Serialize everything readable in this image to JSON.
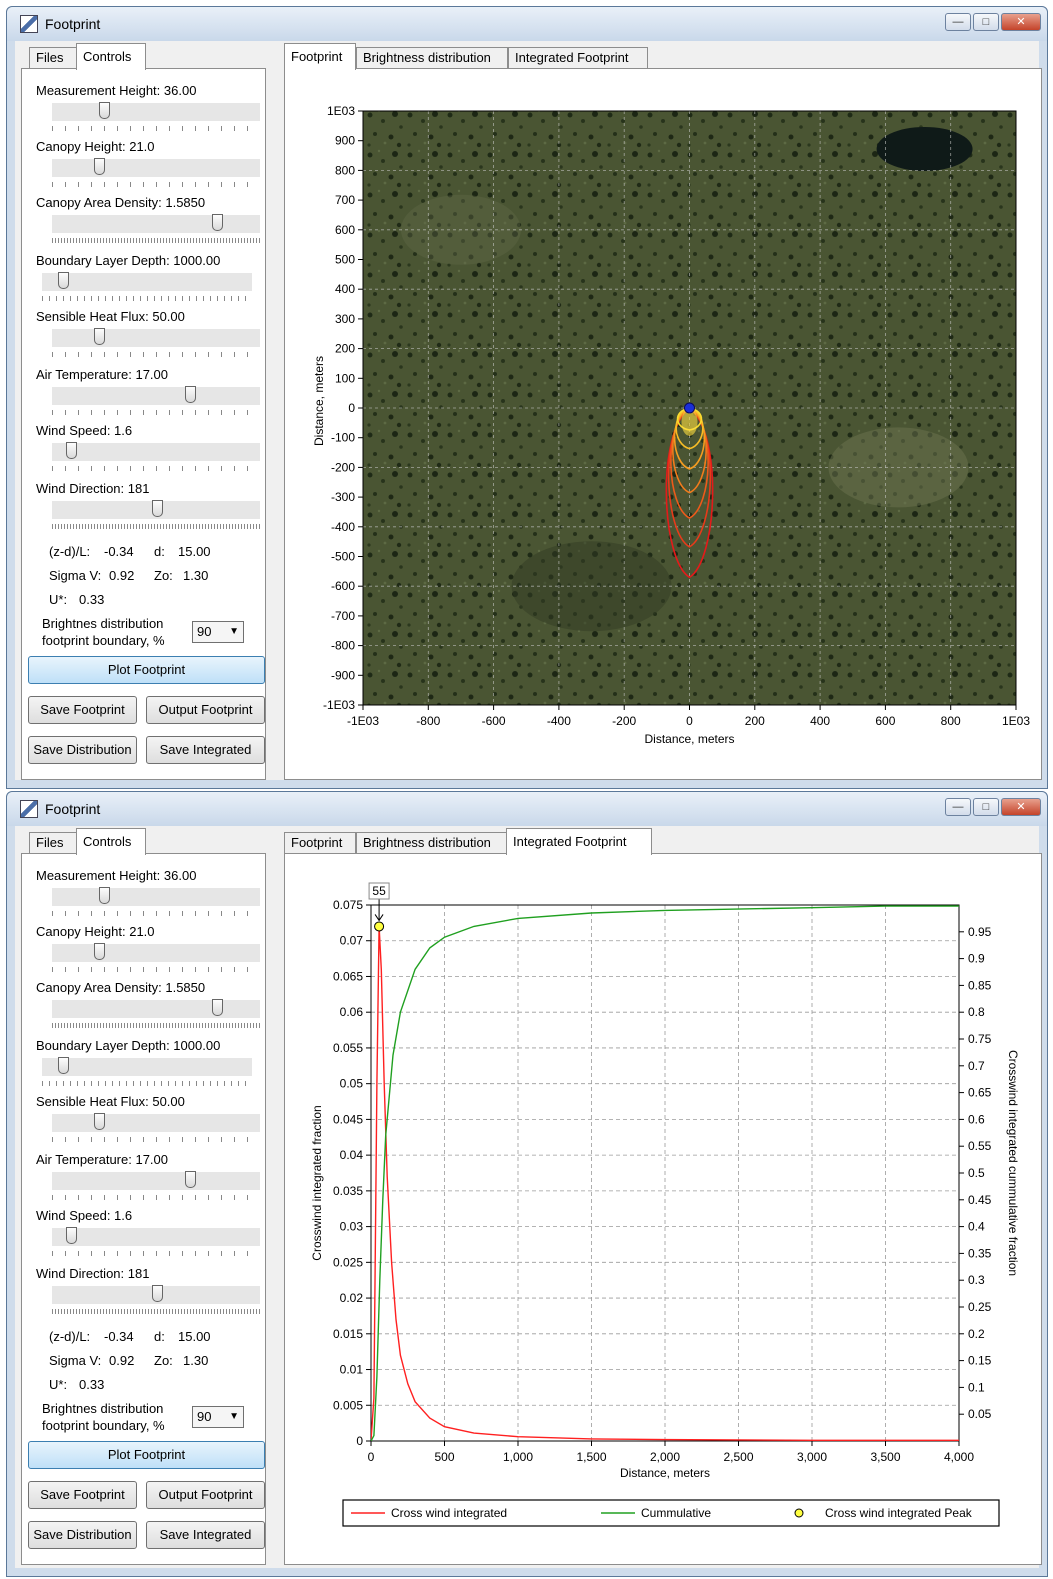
{
  "window_title": "Footprint",
  "left_tabs": [
    "Files",
    "Controls"
  ],
  "right_tabs": [
    "Footprint",
    "Brightness distribution",
    "Integrated Footprint"
  ],
  "controls": {
    "measurement_height": "Measurement Height: 36.00",
    "canopy_height": "Canopy Height: 21.0",
    "canopy_area_density": "Canopy Area Density: 1.5850",
    "boundary_layer_depth": "Boundary Layer Depth: 1000.00",
    "sensible_heat_flux": "Sensible Heat Flux: 50.00",
    "air_temperature": "Air Temperature: 17.00",
    "wind_speed": "Wind Speed: 1.6",
    "wind_direction": "Wind Direction: 181"
  },
  "info": {
    "zd_label": "(z-d)/L:",
    "zd_value": "-0.34",
    "d_label": "d:",
    "d_value": "15.00",
    "sigma_label": "Sigma V:",
    "sigma_value": "0.92",
    "zo_label": "Zo:",
    "zo_value": "1.30",
    "ustar_label": "U*:",
    "ustar_value": "0.33"
  },
  "boundary": {
    "line1": "Brightnes distribution",
    "line2": "footprint boundary, %",
    "value": "90"
  },
  "buttons": {
    "plot": "Plot Footprint",
    "save_footprint": "Save Footprint",
    "output_footprint": "Output Footprint",
    "save_distribution": "Save Distribution",
    "save_integrated": "Save Integrated"
  },
  "colors": {
    "accent": "#3c7fb1",
    "cross_wind": "#ff2020",
    "cumulative": "#20a020",
    "peak": "#ffff40"
  },
  "chart_data": [
    {
      "type": "heatmap",
      "title": "",
      "xlabel": "Distance, meters",
      "ylabel": "Distance, meters",
      "xlim": [
        -1000,
        1000
      ],
      "ylim": [
        -1000,
        1000
      ],
      "x_tick_labels": [
        "-1E03",
        "-800",
        "-600",
        "-400",
        "-200",
        "0",
        "200",
        "400",
        "600",
        "800",
        "1E03"
      ],
      "y_tick_labels": [
        "1E03",
        "900",
        "800",
        "700",
        "600",
        "500",
        "400",
        "300",
        "200",
        "100",
        "0",
        "-100",
        "-200",
        "-300",
        "-400",
        "-500",
        "-600",
        "-700",
        "-800",
        "-900",
        "-1E03"
      ],
      "tower": {
        "x": 0,
        "y": 0
      },
      "footprint_contour_y_range": [
        -570,
        0
      ],
      "grid": true
    },
    {
      "type": "line",
      "title": "",
      "xlabel": "Distance, meters",
      "ylabel": "Crosswind integrated fraction",
      "y2label": "Crosswind integrated cummulative fraction",
      "xlim": [
        0,
        4000
      ],
      "ylim": [
        0,
        0.075
      ],
      "y2lim": [
        0,
        1.0
      ],
      "x_tick_labels": [
        "0",
        "500",
        "1,000",
        "1,500",
        "2,000",
        "2,500",
        "3,000",
        "3,500",
        "4,000"
      ],
      "y_tick_labels": [
        "0",
        "0.005",
        "0.01",
        "0.015",
        "0.02",
        "0.025",
        "0.03",
        "0.035",
        "0.04",
        "0.045",
        "0.05",
        "0.055",
        "0.06",
        "0.065",
        "0.07",
        "0.075"
      ],
      "y2_tick_labels": [
        "0.05",
        "0.1",
        "0.15",
        "0.2",
        "0.25",
        "0.3",
        "0.35",
        "0.4",
        "0.45",
        "0.5",
        "0.55",
        "0.6",
        "0.65",
        "0.7",
        "0.75",
        "0.8",
        "0.85",
        "0.9",
        "0.95"
      ],
      "series": [
        {
          "name": "Cross wind integrated",
          "axis": "left",
          "x": [
            0,
            20,
            40,
            55,
            70,
            90,
            110,
            140,
            170,
            200,
            250,
            300,
            400,
            500,
            700,
            1000,
            1500,
            2000,
            3000,
            4000
          ],
          "y": [
            0,
            0.006,
            0.05,
            0.072,
            0.066,
            0.05,
            0.037,
            0.025,
            0.017,
            0.012,
            0.008,
            0.0055,
            0.0032,
            0.002,
            0.0011,
            0.0006,
            0.0003,
            0.0002,
            0.0001,
            0.0001
          ]
        },
        {
          "name": "Cummulative",
          "axis": "right",
          "x": [
            0,
            20,
            40,
            60,
            80,
            100,
            150,
            200,
            300,
            400,
            500,
            700,
            1000,
            1500,
            2000,
            3000,
            3500,
            4000
          ],
          "y": [
            0,
            0.01,
            0.12,
            0.3,
            0.45,
            0.57,
            0.72,
            0.8,
            0.88,
            0.92,
            0.94,
            0.96,
            0.975,
            0.985,
            0.99,
            0.995,
            0.998,
            0.998
          ]
        }
      ],
      "peak": {
        "name": "Cross wind integrated Peak",
        "x": 55,
        "y": 0.072,
        "label": "55"
      },
      "legend": "bottom",
      "grid": true
    }
  ]
}
